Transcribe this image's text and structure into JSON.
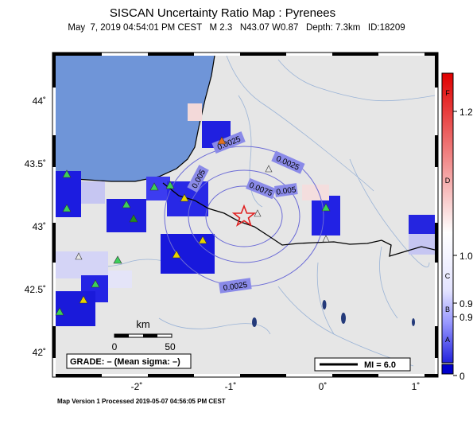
{
  "map": {
    "title": "SISCAN Uncertainty Ratio Map : Pyrenees",
    "subtitle": "May  7, 2019 04:54:01 PM CEST   M 2.3   N43.07 W0.87   Depth: 7.3km   ID:18209",
    "footer": "Map Version 1 Processed 2019-05-07 04:56:05 PM CEST",
    "lon_ticks": [
      "-2˚",
      "-1˚",
      "0˚",
      "1˚"
    ],
    "lat_ticks": [
      "44˚",
      "43.5˚",
      "43˚",
      "42.5˚",
      "42˚"
    ],
    "grade_text": "GRADE: – (Mean sigma: –)",
    "scale_unit": "km",
    "scale_labels": [
      "0",
      "50"
    ],
    "mi_legend": "MI = 6.0",
    "contour_labels": [
      "0.0025",
      "0.0025",
      "0.005",
      "0.0075",
      "0.005",
      "0.0025"
    ],
    "colorbar": {
      "letters": [
        "F",
        "D",
        "C",
        "B",
        "A"
      ],
      "values": [
        "1.2",
        "1.0",
        "0.9",
        "0.9",
        "0"
      ],
      "colors": [
        "#e00000",
        "#ffffff",
        "#3333ff",
        "#0000cc"
      ]
    },
    "epicenter_color": "#e02020",
    "water_color": "#6f95d8",
    "land_color": "#e6e6e6"
  }
}
